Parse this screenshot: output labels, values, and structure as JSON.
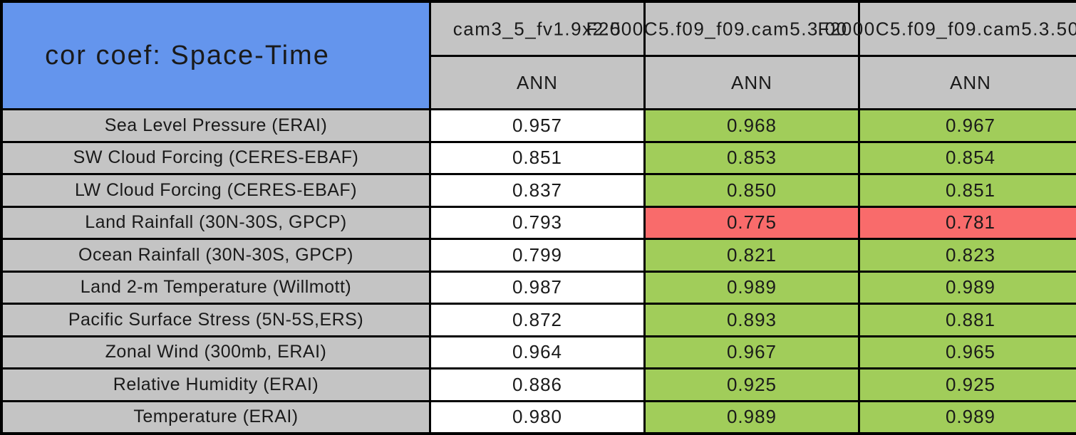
{
  "table": {
    "title": "cor coef: Space-Time",
    "header": {
      "models": [
        "cam3_5_fv1.9x2.5",
        "F2000C5.f09_f09.cam5.3.00",
        "F2000C5.f09_f09.cam5.3.50"
      ],
      "seasons": [
        "ANN",
        "ANN",
        "ANN"
      ]
    },
    "rows": [
      {
        "label": "Sea Level Pressure (ERAI)",
        "values": [
          "0.957",
          "0.968",
          "0.967"
        ],
        "colors": [
          "white",
          "green",
          "green"
        ]
      },
      {
        "label": "SW Cloud Forcing (CERES-EBAF)",
        "values": [
          "0.851",
          "0.853",
          "0.854"
        ],
        "colors": [
          "white",
          "green",
          "green"
        ]
      },
      {
        "label": "LW Cloud Forcing (CERES-EBAF)",
        "values": [
          "0.837",
          "0.850",
          "0.851"
        ],
        "colors": [
          "white",
          "green",
          "green"
        ]
      },
      {
        "label": "Land Rainfall (30N-30S, GPCP)",
        "values": [
          "0.793",
          "0.775",
          "0.781"
        ],
        "colors": [
          "white",
          "red",
          "red"
        ]
      },
      {
        "label": "Ocean Rainfall (30N-30S, GPCP)",
        "values": [
          "0.799",
          "0.821",
          "0.823"
        ],
        "colors": [
          "white",
          "green",
          "green"
        ]
      },
      {
        "label": "Land 2-m Temperature (Willmott)",
        "values": [
          "0.987",
          "0.989",
          "0.989"
        ],
        "colors": [
          "white",
          "green",
          "green"
        ]
      },
      {
        "label": "Pacific Surface Stress (5N-5S,ERS)",
        "values": [
          "0.872",
          "0.893",
          "0.881"
        ],
        "colors": [
          "white",
          "green",
          "green"
        ]
      },
      {
        "label": "Zonal Wind (300mb, ERAI)",
        "values": [
          "0.964",
          "0.967",
          "0.965"
        ],
        "colors": [
          "white",
          "green",
          "green"
        ]
      },
      {
        "label": "Relative Humidity (ERAI)",
        "values": [
          "0.886",
          "0.925",
          "0.925"
        ],
        "colors": [
          "white",
          "green",
          "green"
        ]
      },
      {
        "label": "Temperature (ERAI)",
        "values": [
          "0.980",
          "0.989",
          "0.989"
        ],
        "colors": [
          "white",
          "green",
          "green"
        ]
      }
    ],
    "colors": {
      "title_bg": "#6495ED",
      "header_bg": "#C4C4C4",
      "label_bg": "#C4C4C4",
      "better": "#A1CD5A",
      "worse": "#F96B6B",
      "neutral": "#FFFFFF",
      "grid": "#000000",
      "text": "#1A1A1A"
    }
  },
  "chart_data": {
    "type": "table",
    "title": "cor coef: Space-Time",
    "columns": [
      "cam3_5_fv1.9x2.5",
      "F2000C5.f09_f09.cam5.3.00",
      "F2000C5.f09_f09.cam5.3.50"
    ],
    "season_row": [
      "ANN",
      "ANN",
      "ANN"
    ],
    "rows": [
      {
        "variable": "Sea Level Pressure (ERAI)",
        "values": [
          0.957,
          0.968,
          0.967
        ]
      },
      {
        "variable": "SW Cloud Forcing (CERES-EBAF)",
        "values": [
          0.851,
          0.853,
          0.854
        ]
      },
      {
        "variable": "LW Cloud Forcing (CERES-EBAF)",
        "values": [
          0.837,
          0.85,
          0.851
        ]
      },
      {
        "variable": "Land Rainfall (30N-30S, GPCP)",
        "values": [
          0.793,
          0.775,
          0.781
        ]
      },
      {
        "variable": "Ocean Rainfall (30N-30S, GPCP)",
        "values": [
          0.799,
          0.821,
          0.823
        ]
      },
      {
        "variable": "Land 2-m Temperature (Willmott)",
        "values": [
          0.987,
          0.989,
          0.989
        ]
      },
      {
        "variable": "Pacific Surface Stress (5N-5S,ERS)",
        "values": [
          0.872,
          0.893,
          0.881
        ]
      },
      {
        "variable": "Zonal Wind (300mb, ERAI)",
        "values": [
          0.964,
          0.967,
          0.965
        ]
      },
      {
        "variable": "Relative Humidity (ERAI)",
        "values": [
          0.886,
          0.925,
          0.925
        ]
      },
      {
        "variable": "Temperature (ERAI)",
        "values": [
          0.98,
          0.989,
          0.989
        ]
      }
    ],
    "cell_highlight": [
      [
        "white",
        "green",
        "green"
      ],
      [
        "white",
        "green",
        "green"
      ],
      [
        "white",
        "green",
        "green"
      ],
      [
        "white",
        "red",
        "red"
      ],
      [
        "white",
        "green",
        "green"
      ],
      [
        "white",
        "green",
        "green"
      ],
      [
        "white",
        "green",
        "green"
      ],
      [
        "white",
        "green",
        "green"
      ],
      [
        "white",
        "green",
        "green"
      ],
      [
        "white",
        "green",
        "green"
      ]
    ],
    "layout": {
      "grid": "on",
      "legend": "none",
      "value_format": "3 decimal places"
    }
  }
}
